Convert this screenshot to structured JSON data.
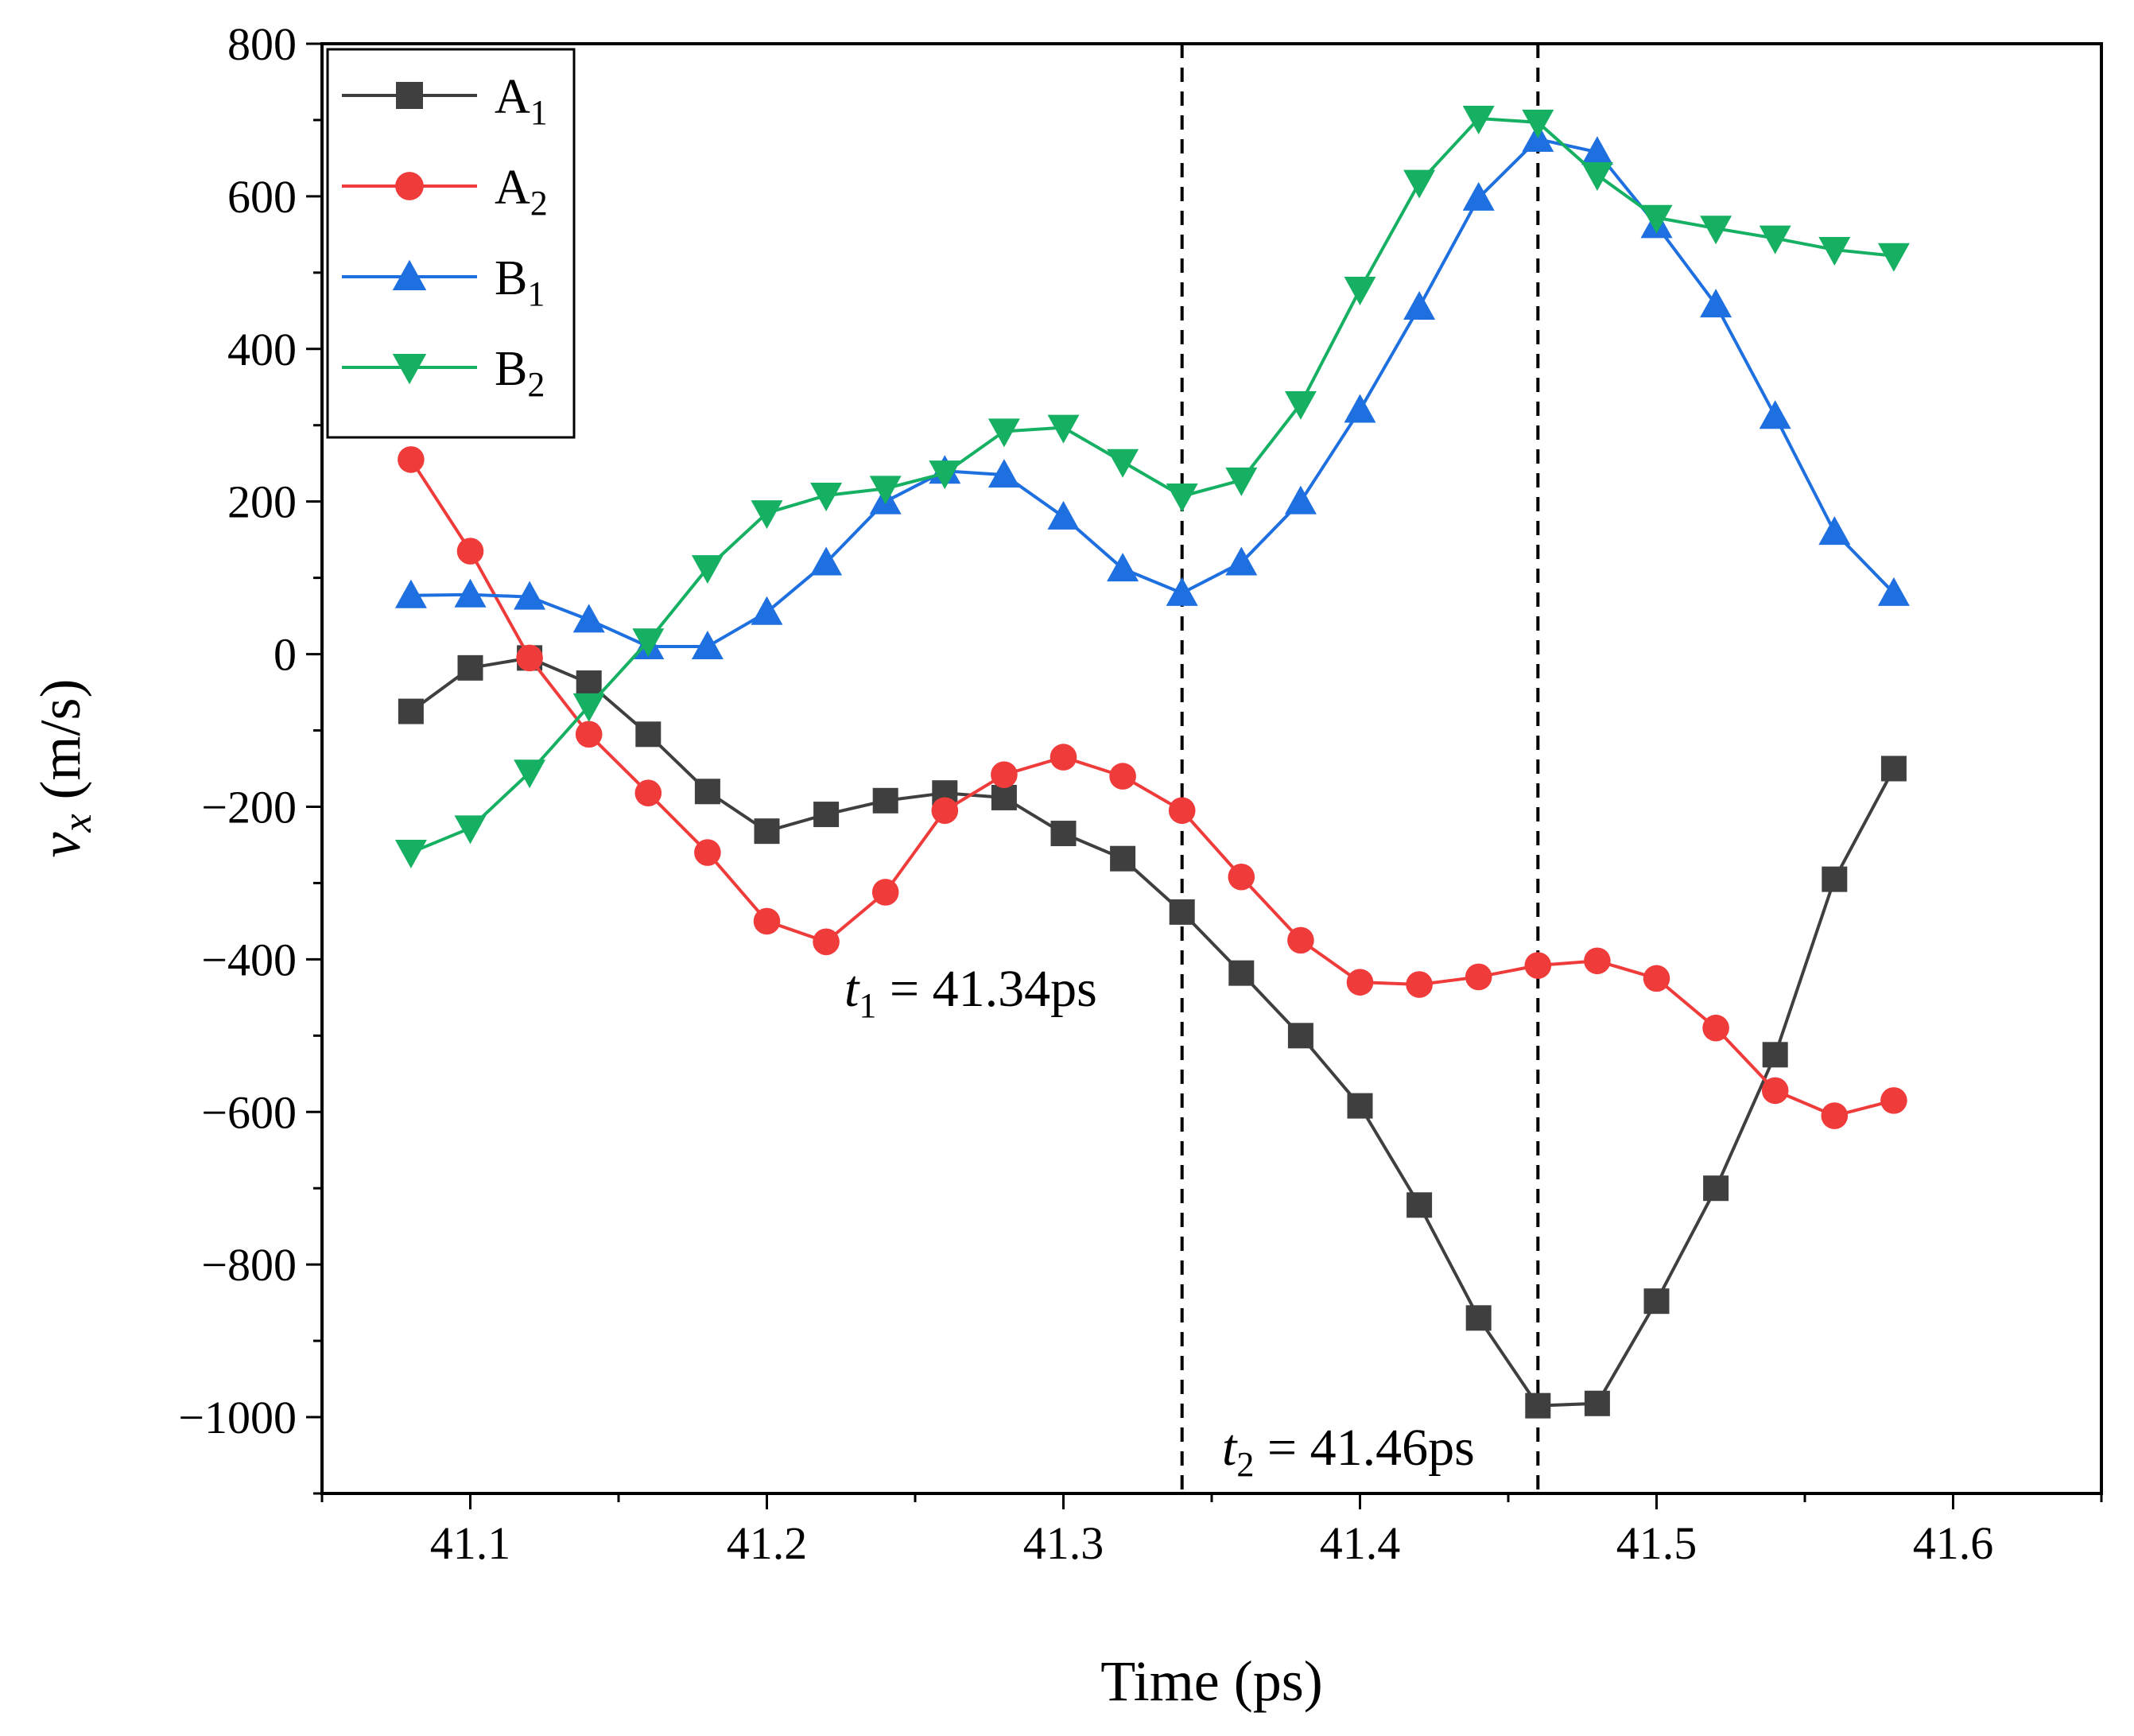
{
  "chart_data": {
    "type": "line",
    "title": "",
    "xlabel": "Time (ps)",
    "ylabel": "v",
    "ylabel_sub": "x",
    "ylabel_unit": " (m/s)",
    "xlim": [
      41.05,
      41.65
    ],
    "ylim": [
      -1100,
      800
    ],
    "xticks": [
      41.1,
      41.2,
      41.3,
      41.4,
      41.5,
      41.6
    ],
    "xtick_labels": [
      "41.1",
      "41.2",
      "41.3",
      "41.4",
      "41.5",
      "41.6"
    ],
    "yticks": [
      800,
      600,
      400,
      200,
      0,
      -200,
      -400,
      -600,
      -800,
      -1000
    ],
    "ytick_labels": [
      "800",
      "600",
      "400",
      "200",
      "0",
      "−200",
      "−400",
      "−600",
      "−800",
      "−1000"
    ],
    "grid": false,
    "legend_position": "top-left",
    "x": [
      41.08,
      41.1,
      41.12,
      41.14,
      41.16,
      41.18,
      41.2,
      41.22,
      41.24,
      41.26,
      41.28,
      41.3,
      41.32,
      41.34,
      41.36,
      41.38,
      41.4,
      41.42,
      41.44,
      41.46,
      41.48,
      41.5,
      41.52,
      41.54,
      41.56,
      41.58
    ],
    "series": [
      {
        "name": "A",
        "sub": "1",
        "color": "#3f3f3f",
        "marker": "square",
        "values": [
          -75,
          -18,
          -5,
          -38,
          -105,
          -180,
          -232,
          -210,
          -192,
          -182,
          -188,
          -235,
          -268,
          -338,
          -418,
          -500,
          -592,
          -722,
          -870,
          -985,
          -982,
          -848,
          -700,
          -525,
          -295,
          -150
        ]
      },
      {
        "name": "A",
        "sub": "2",
        "color": "#f03b3b",
        "marker": "circle",
        "values": [
          255,
          135,
          -5,
          -105,
          -182,
          -260,
          -350,
          -377,
          -312,
          -205,
          -158,
          -135,
          -160,
          -205,
          -292,
          -375,
          -430,
          -433,
          -423,
          -408,
          -402,
          -425,
          -490,
          -572,
          -605,
          -585
        ]
      },
      {
        "name": "B",
        "sub": "1",
        "color": "#1e6fe0",
        "marker": "triangle-up",
        "values": [
          77,
          78,
          75,
          45,
          10,
          10,
          55,
          120,
          200,
          240,
          235,
          180,
          112,
          80,
          120,
          200,
          320,
          455,
          598,
          675,
          658,
          562,
          458,
          312,
          160,
          80
        ]
      },
      {
        "name": "B",
        "sub": "2",
        "color": "#16b063",
        "marker": "triangle-down",
        "values": [
          -260,
          -228,
          -155,
          -68,
          17,
          113,
          185,
          208,
          217,
          237,
          292,
          297,
          252,
          207,
          228,
          328,
          478,
          618,
          702,
          697,
          628,
          572,
          558,
          545,
          530,
          522
        ]
      }
    ],
    "vlines": [
      {
        "x": 41.34,
        "label_var": "t",
        "label_sub": "1",
        "label_rest": " = 41.34ps"
      },
      {
        "x": 41.46,
        "label_var": "t",
        "label_sub": "2",
        "label_rest": " = 41.46ps"
      }
    ]
  }
}
